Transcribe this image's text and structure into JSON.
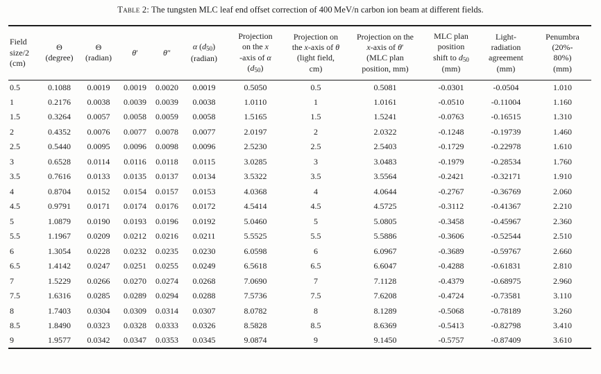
{
  "document": {
    "caption_label": "Table 2:",
    "caption_text": " The tungsten MLC leaf end offset correction of 400 MeV/n carbon ion beam at different fields."
  },
  "colors": {
    "text": "#1c1c1c",
    "rule": "#1c1c1c",
    "background": "#fdfdfc"
  },
  "table": {
    "headers_text": [
      "Field size/2 (cm)",
      "Θ (degree)",
      "Θ (radian)",
      "θ′",
      "θ″",
      "α (d₅₀) (radian)",
      "Projection on the x-axis of α (d₅₀)",
      "Projection on the x-axis of θ (light field, cm)",
      "Projection on the x-axis of θ′ (MLC plan position, mm)",
      "MLC plan position shift to d₅₀ (mm)",
      "Light-radiation agreement (mm)",
      "Penumbra (20%-80%) (mm)"
    ],
    "headers_html": [
      "Field<br>size/2<br>(cm)",
      "Θ<br>(degree)",
      "Θ<br>(radian)",
      "<i>θ</i>′",
      "<i>θ</i>″",
      "<i>α</i> (<i>d</i><sub>50</sub>)<br>(radian)",
      "Projection<br>on the <i>x</i><br>-axis of <i>α</i><br>(<i>d</i><sub>50</sub>)",
      "Projection on<br>the <i>x</i>-axis of <i>θ</i><br>(light field,<br>cm)",
      "Projection on the<br><i>x</i>-axis of <i>θ</i>′<br>(MLC plan<br>position, mm)",
      "MLC plan<br>position<br>shift to <i>d</i><sub>50</sub><br>(mm)",
      "Light-<br>radiation<br>agreement<br>(mm)",
      "Penumbra<br>(20%-<br>80%)<br>(mm)"
    ],
    "rows": [
      [
        "0.5",
        "0.1088",
        "0.0019",
        "0.0019",
        "0.0020",
        "0.0019",
        "0.5050",
        "0.5",
        "0.5081",
        "-0.0301",
        "-0.0504",
        "1.010"
      ],
      [
        "1",
        "0.2176",
        "0.0038",
        "0.0039",
        "0.0039",
        "0.0038",
        "1.0110",
        "1",
        "1.0161",
        "-0.0510",
        "-0.11004",
        "1.160"
      ],
      [
        "1.5",
        "0.3264",
        "0.0057",
        "0.0058",
        "0.0059",
        "0.0058",
        "1.5165",
        "1.5",
        "1.5241",
        "-0.0763",
        "-0.16515",
        "1.310"
      ],
      [
        "2",
        "0.4352",
        "0.0076",
        "0.0077",
        "0.0078",
        "0.0077",
        "2.0197",
        "2",
        "2.0322",
        "-0.1248",
        "-0.19739",
        "1.460"
      ],
      [
        "2.5",
        "0.5440",
        "0.0095",
        "0.0096",
        "0.0098",
        "0.0096",
        "2.5230",
        "2.5",
        "2.5403",
        "-0.1729",
        "-0.22978",
        "1.610"
      ],
      [
        "3",
        "0.6528",
        "0.0114",
        "0.0116",
        "0.0118",
        "0.0115",
        "3.0285",
        "3",
        "3.0483",
        "-0.1979",
        "-0.28534",
        "1.760"
      ],
      [
        "3.5",
        "0.7616",
        "0.0133",
        "0.0135",
        "0.0137",
        "0.0134",
        "3.5322",
        "3.5",
        "3.5564",
        "-0.2421",
        "-0.32171",
        "1.910"
      ],
      [
        "4",
        "0.8704",
        "0.0152",
        "0.0154",
        "0.0157",
        "0.0153",
        "4.0368",
        "4",
        "4.0644",
        "-0.2767",
        "-0.36769",
        "2.060"
      ],
      [
        "4.5",
        "0.9791",
        "0.0171",
        "0.0174",
        "0.0176",
        "0.0172",
        "4.5414",
        "4.5",
        "4.5725",
        "-0.3112",
        "-0.41367",
        "2.210"
      ],
      [
        "5",
        "1.0879",
        "0.0190",
        "0.0193",
        "0.0196",
        "0.0192",
        "5.0460",
        "5",
        "5.0805",
        "-0.3458",
        "-0.45967",
        "2.360"
      ],
      [
        "5.5",
        "1.1967",
        "0.0209",
        "0.0212",
        "0.0216",
        "0.0211",
        "5.5525",
        "5.5",
        "5.5886",
        "-0.3606",
        "-0.52544",
        "2.510"
      ],
      [
        "6",
        "1.3054",
        "0.0228",
        "0.0232",
        "0.0235",
        "0.0230",
        "6.0598",
        "6",
        "6.0967",
        "-0.3689",
        "-0.59767",
        "2.660"
      ],
      [
        "6.5",
        "1.4142",
        "0.0247",
        "0.0251",
        "0.0255",
        "0.0249",
        "6.5618",
        "6.5",
        "6.6047",
        "-0.4288",
        "-0.61831",
        "2.810"
      ],
      [
        "7",
        "1.5229",
        "0.0266",
        "0.0270",
        "0.0274",
        "0.0268",
        "7.0690",
        "7",
        "7.1128",
        "-0.4379",
        "-0.68975",
        "2.960"
      ],
      [
        "7.5",
        "1.6316",
        "0.0285",
        "0.0289",
        "0.0294",
        "0.0288",
        "7.5736",
        "7.5",
        "7.6208",
        "-0.4724",
        "-0.73581",
        "3.110"
      ],
      [
        "8",
        "1.7403",
        "0.0304",
        "0.0309",
        "0.0314",
        "0.0307",
        "8.0782",
        "8",
        "8.1289",
        "-0.5068",
        "-0.78189",
        "3.260"
      ],
      [
        "8.5",
        "1.8490",
        "0.0323",
        "0.0328",
        "0.0333",
        "0.0326",
        "8.5828",
        "8.5",
        "8.6369",
        "-0.5413",
        "-0.82798",
        "3.410"
      ],
      [
        "9",
        "1.9577",
        "0.0342",
        "0.0347",
        "0.0353",
        "0.0345",
        "9.0874",
        "9",
        "9.1450",
        "-0.5757",
        "-0.87409",
        "3.610"
      ]
    ]
  }
}
